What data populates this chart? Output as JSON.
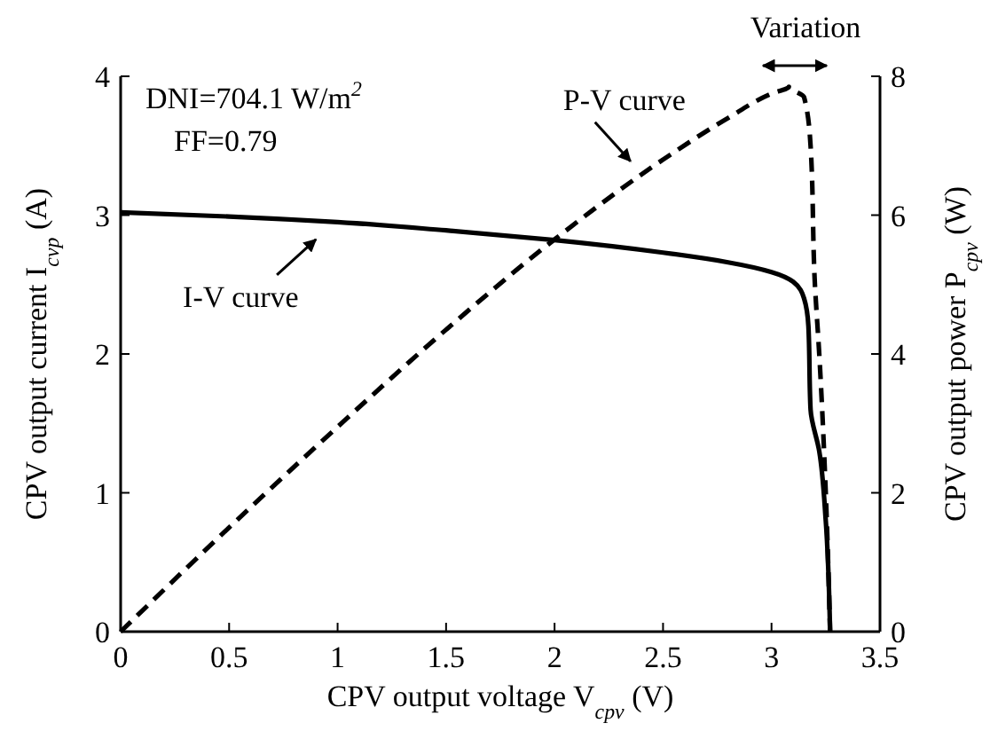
{
  "chart_data": {
    "type": "line",
    "xlabel": "CPV output voltage V$_{cpv}$ (V)",
    "ylabel": "CPV output current I$_{cvp}$ (A)",
    "y2label": "CPV output power P$_{cpv}$ (W)",
    "xlim": [
      0,
      3.5
    ],
    "xticks": [
      0,
      0.5,
      1,
      1.5,
      2,
      2.5,
      3,
      3.5
    ],
    "ylim": [
      0,
      4
    ],
    "yticks": [
      0,
      1,
      2,
      3,
      4
    ],
    "y2lim": [
      0,
      8
    ],
    "y2ticks": [
      0,
      2,
      4,
      6,
      8
    ],
    "grid": false,
    "annotations": [
      "DNI=704.1 W/m$^{2}$",
      "FF=0.79",
      "Variation"
    ],
    "series": [
      {
        "name": "I-V curve",
        "color": "#000000",
        "line_style": "solid",
        "x": [
          0,
          0.5,
          1,
          1.5,
          2,
          2.5,
          2.8,
          3,
          3.1,
          3.15,
          3.17,
          3.18,
          3.22,
          3.25,
          3.27
        ],
        "values": [
          3.02,
          2.99,
          2.95,
          2.89,
          2.82,
          2.73,
          2.66,
          2.59,
          2.52,
          2.4,
          2.2,
          1.6,
          1.3,
          0.8,
          0
        ]
      },
      {
        "name": "P-V curve",
        "color": "#000000",
        "line_style": "dashed",
        "axis": "y2",
        "x": [
          0,
          0.5,
          1,
          1.5,
          2,
          2.5,
          2.8,
          3,
          3.08,
          3.15,
          3.18,
          3.2,
          3.22,
          3.25,
          3.27
        ],
        "values": [
          0,
          1.5,
          2.95,
          4.35,
          5.65,
          6.8,
          7.4,
          7.75,
          7.85,
          7.7,
          7.0,
          5.0,
          4.0,
          2.0,
          0
        ]
      }
    ]
  }
}
